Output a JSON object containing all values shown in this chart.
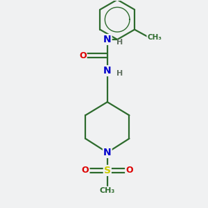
{
  "background_color": "#f0f1f2",
  "bond_color": "#2d6b2d",
  "atom_colors": {
    "N": "#0000cc",
    "O": "#dd0000",
    "S": "#cccc00",
    "H": "#607060",
    "C": "#2d6b2d"
  },
  "figsize": [
    3.0,
    3.0
  ],
  "dpi": 100
}
